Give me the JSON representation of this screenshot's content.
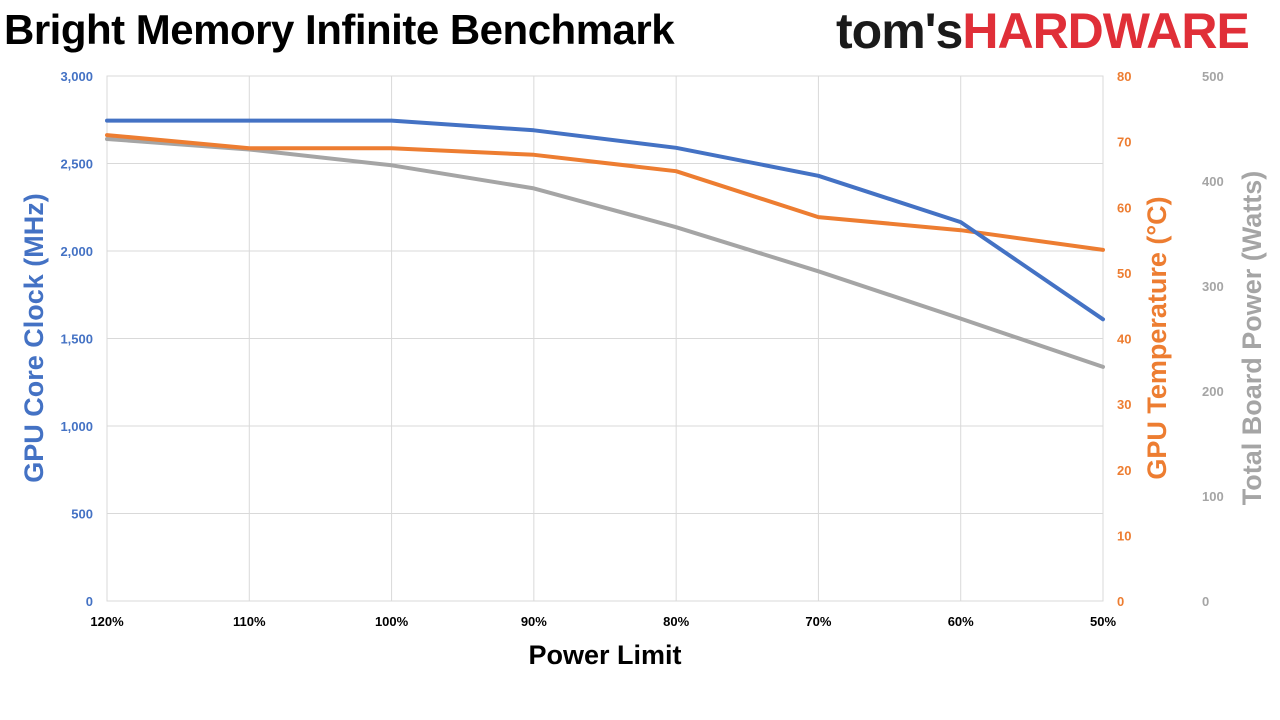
{
  "title": "Bright Memory Infinite Benchmark",
  "brand": {
    "part1": "tom's",
    "part2": "HARDWARE"
  },
  "chart_data": {
    "type": "line",
    "title": "Bright Memory Infinite Benchmark",
    "xlabel": "Power Limit",
    "categories": [
      "120%",
      "110%",
      "100%",
      "90%",
      "80%",
      "70%",
      "60%",
      "50%"
    ],
    "grid": true,
    "legend": "none",
    "series": [
      {
        "axis": "y",
        "color": "#4472c4",
        "values": [
          2745,
          2745,
          2745,
          2690,
          2590,
          2430,
          2165,
          1610
        ]
      },
      {
        "axis": "y2",
        "color": "#ed7d31",
        "values": [
          71,
          69,
          69,
          68,
          65.5,
          58.5,
          56.5,
          53.5
        ]
      },
      {
        "axis": "y3",
        "color": "#a5a5a5",
        "values": [
          440,
          430,
          415,
          393,
          356,
          314,
          269,
          223
        ]
      }
    ],
    "axes": {
      "y": {
        "label": "GPU Core Clock (MHz)",
        "color": "#4472c4",
        "range": [
          0,
          3000
        ],
        "ticks": [
          "0",
          "500",
          "1,000",
          "1,500",
          "2,000",
          "2,500",
          "3,000"
        ]
      },
      "y2": {
        "label": "GPU Temperature (°C)",
        "color": "#ed7d31",
        "range": [
          0,
          80
        ],
        "ticks": [
          "0",
          "10",
          "20",
          "30",
          "40",
          "50",
          "60",
          "70",
          "80"
        ]
      },
      "y3": {
        "label": "Total Board Power (Watts)",
        "color": "#a5a5a5",
        "range": [
          0,
          500
        ],
        "ticks": [
          "0",
          "100",
          "200",
          "300",
          "400",
          "500"
        ]
      }
    }
  }
}
